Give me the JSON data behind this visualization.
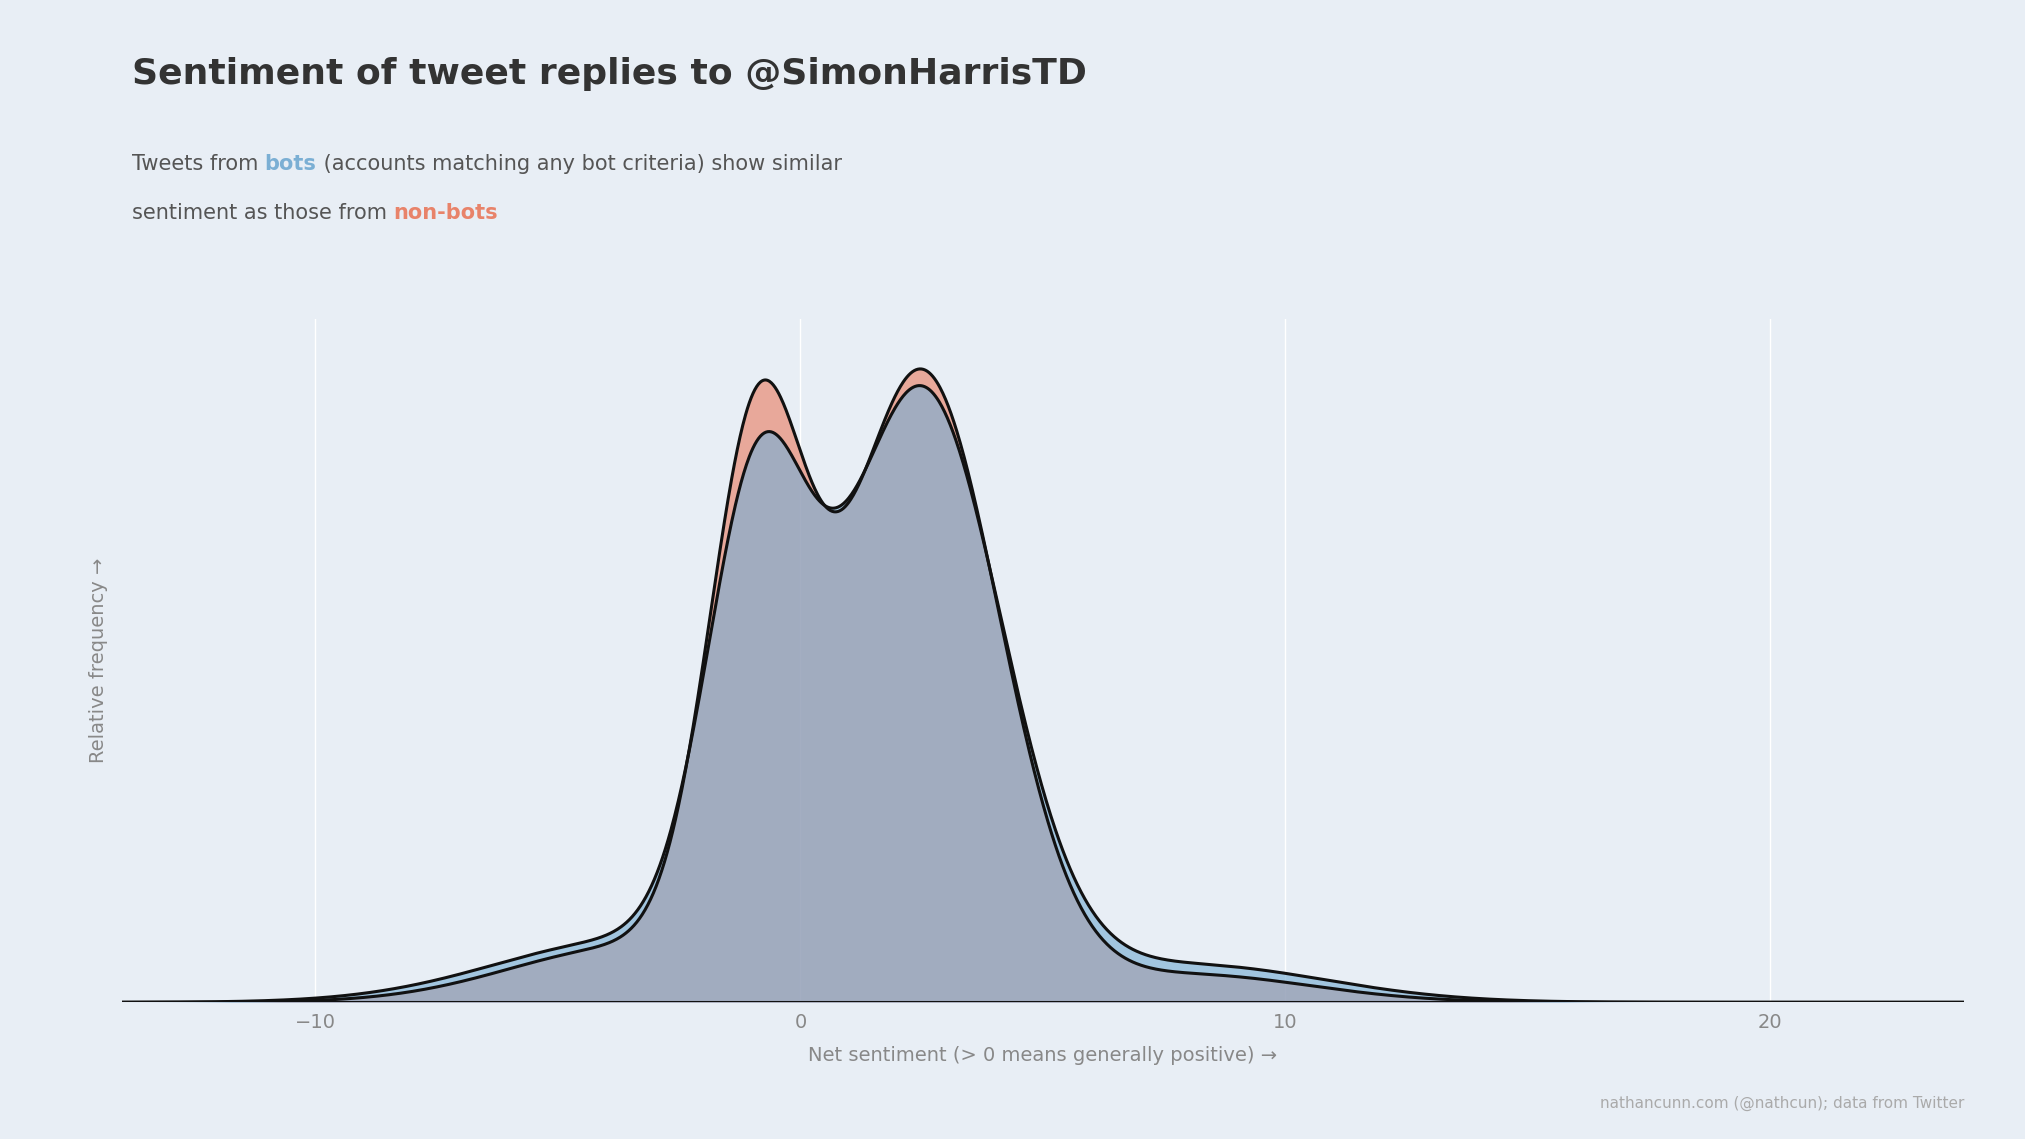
{
  "title": "Sentiment of tweet replies to @SimonHarrisTD",
  "xlabel": "Net sentiment (> 0 means generally positive) →",
  "ylabel": "Relative frequency →",
  "background_color": "#e8eef5",
  "plot_bg_color": "#e8eef5",
  "bots_color": "#7bafd4",
  "nonbots_color": "#e8836a",
  "bots_alpha": 0.65,
  "nonbots_alpha": 0.65,
  "line_color": "#111111",
  "line_width": 2.2,
  "attribution": "nathancunn.com (@nathcun); data from Twitter",
  "xlim": [
    -14,
    24
  ],
  "ylim": [
    0,
    0.205
  ],
  "title_fontsize": 26,
  "subtitle_fontsize": 15,
  "axis_label_fontsize": 14,
  "tick_fontsize": 14,
  "attribution_fontsize": 11,
  "subtitle_line1": [
    [
      "Tweets from ",
      "#555555"
    ],
    [
      "bots",
      "#7bafd4"
    ],
    [
      " (accounts matching any bot criteria) show similar",
      "#555555"
    ]
  ],
  "subtitle_line2": [
    [
      "sentiment as those from ",
      "#555555"
    ],
    [
      "non-bots",
      "#e8836a"
    ]
  ]
}
